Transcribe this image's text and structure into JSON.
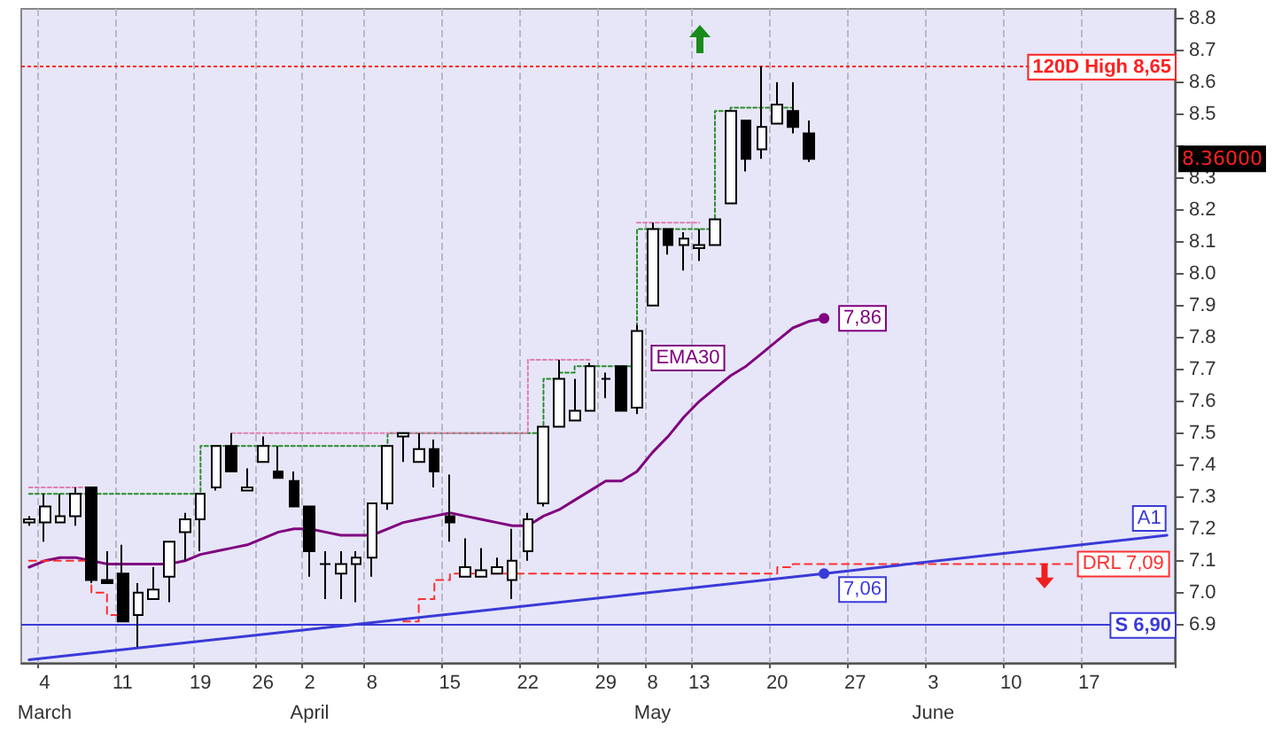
{
  "chart_data": {
    "type": "candlestick",
    "categories": [
      null,
      "4\nMarch",
      null,
      null,
      null,
      null,
      "11",
      null,
      null,
      null,
      null,
      "19",
      null,
      null,
      null,
      "26",
      null,
      null,
      "2\nApril",
      null,
      null,
      null,
      "8",
      null,
      null,
      null,
      null,
      "15",
      null,
      null,
      null,
      null,
      "22",
      null,
      null,
      null,
      null,
      "29",
      null,
      null,
      "8\nMay",
      null,
      null,
      "13",
      null,
      null,
      null,
      null,
      "20",
      null,
      null,
      null,
      null,
      "27",
      null,
      null,
      null,
      null,
      "3\nJune",
      null,
      null,
      null,
      null,
      "10",
      null,
      null,
      null,
      null,
      "17",
      null,
      null,
      null,
      null,
      null
    ],
    "ohlc": [
      [
        7.22,
        7.24,
        7.21,
        7.23
      ],
      [
        7.22,
        7.31,
        7.16,
        7.27
      ],
      [
        7.22,
        7.31,
        7.22,
        7.24
      ],
      [
        7.24,
        7.33,
        7.21,
        7.31
      ],
      [
        7.33,
        7.33,
        7.03,
        7.04
      ],
      [
        7.04,
        7.13,
        7.03,
        7.03
      ],
      [
        7.06,
        7.15,
        6.91,
        6.91
      ],
      [
        6.93,
        7.03,
        6.83,
        7.0
      ],
      [
        6.98,
        7.08,
        6.98,
        7.01
      ],
      [
        7.05,
        7.16,
        6.97,
        7.16
      ],
      [
        7.19,
        7.25,
        7.1,
        7.23
      ],
      [
        7.23,
        7.31,
        7.13,
        7.31
      ],
      [
        7.33,
        7.46,
        7.32,
        7.46
      ],
      [
        7.46,
        7.5,
        7.38,
        7.38
      ],
      [
        7.32,
        7.39,
        7.32,
        7.33
      ],
      [
        7.41,
        7.49,
        7.41,
        7.46
      ],
      [
        7.38,
        7.46,
        7.36,
        7.36
      ],
      [
        7.35,
        7.38,
        7.27,
        7.27
      ],
      [
        7.27,
        7.27,
        7.05,
        7.13
      ],
      [
        7.09,
        7.13,
        6.98,
        7.09
      ],
      [
        7.06,
        7.13,
        6.98,
        7.09
      ],
      [
        7.09,
        7.13,
        6.97,
        7.11
      ],
      [
        7.11,
        7.28,
        7.05,
        7.28
      ],
      [
        7.28,
        7.46,
        7.26,
        7.46
      ],
      [
        7.49,
        7.5,
        7.41,
        7.5
      ],
      [
        7.41,
        7.5,
        7.41,
        7.45
      ],
      [
        7.45,
        7.48,
        7.33,
        7.38
      ],
      [
        7.24,
        7.37,
        7.16,
        7.22
      ],
      [
        7.05,
        7.17,
        7.05,
        7.08
      ],
      [
        7.05,
        7.14,
        7.05,
        7.07
      ],
      [
        7.06,
        7.11,
        7.06,
        7.08
      ],
      [
        7.04,
        7.2,
        6.98,
        7.1
      ],
      [
        7.13,
        7.25,
        7.1,
        7.23
      ],
      [
        7.28,
        7.52,
        7.27,
        7.52
      ],
      [
        7.52,
        7.73,
        7.52,
        7.67
      ],
      [
        7.54,
        7.67,
        7.54,
        7.57
      ],
      [
        7.57,
        7.72,
        7.57,
        7.71
      ],
      [
        7.67,
        7.69,
        7.61,
        7.67
      ],
      [
        7.71,
        7.71,
        7.57,
        7.57
      ],
      [
        7.58,
        7.84,
        7.56,
        7.82
      ],
      [
        7.9,
        8.16,
        7.9,
        8.14
      ],
      [
        8.14,
        8.14,
        8.06,
        8.09
      ],
      [
        8.09,
        8.13,
        8.01,
        8.11
      ],
      [
        8.08,
        8.14,
        8.04,
        8.09
      ],
      [
        8.09,
        8.17,
        8.09,
        8.17
      ],
      [
        8.22,
        8.51,
        8.22,
        8.51
      ],
      [
        8.48,
        8.48,
        8.32,
        8.36
      ],
      [
        8.39,
        8.65,
        8.36,
        8.46
      ],
      [
        8.47,
        8.6,
        8.47,
        8.53
      ],
      [
        8.51,
        8.6,
        8.44,
        8.46
      ],
      [
        8.44,
        8.48,
        8.35,
        8.36
      ],
      null,
      null,
      null,
      null,
      null,
      null,
      null,
      null,
      null,
      null,
      null,
      null,
      null,
      null,
      null,
      null,
      null,
      null,
      null,
      null,
      null,
      null,
      null
    ],
    "series": [
      {
        "type": "line",
        "name": "EMA30",
        "color": "#800080",
        "values": [
          7.08,
          7.1,
          7.11,
          7.11,
          7.1,
          7.09,
          7.09,
          7.09,
          7.09,
          7.09,
          7.1,
          7.12,
          7.13,
          7.14,
          7.15,
          7.17,
          7.19,
          7.2,
          7.2,
          7.19,
          7.18,
          7.18,
          7.18,
          7.2,
          7.22,
          7.23,
          7.24,
          7.25,
          7.24,
          7.23,
          7.22,
          7.21,
          7.21,
          7.24,
          7.26,
          7.29,
          7.32,
          7.35,
          7.35,
          7.38,
          7.44,
          7.49,
          7.55,
          7.6,
          7.64,
          7.68,
          7.71,
          7.75,
          7.79,
          7.83,
          7.85,
          7.86,
          null,
          null,
          null,
          null,
          null,
          null,
          null,
          null,
          null,
          null,
          null,
          null,
          null,
          null,
          null,
          null,
          null,
          null,
          null,
          null,
          null,
          null
        ],
        "value_labels": [
          null,
          null,
          null,
          null,
          null,
          null,
          null,
          null,
          null,
          null,
          null,
          null,
          null,
          null,
          null,
          null,
          null,
          null,
          null,
          null,
          null,
          null,
          null,
          null,
          null,
          null,
          null,
          null,
          null,
          null,
          null,
          null,
          null,
          null,
          null,
          null,
          null,
          null,
          null,
          null,
          null,
          null,
          null,
          null,
          null,
          null,
          null,
          null,
          null,
          null,
          null,
          "7,86",
          null,
          null,
          null,
          null,
          null,
          null,
          null,
          null,
          null,
          null,
          null,
          null,
          null,
          null,
          null,
          null,
          null,
          null,
          null,
          null,
          null,
          null
        ]
      },
      {
        "type": "step",
        "color": "#2e8b2e",
        "line_style": "dotted",
        "values": [
          7.31,
          7.31,
          7.31,
          7.31,
          7.31,
          7.31,
          7.31,
          7.31,
          7.31,
          7.31,
          7.31,
          7.31,
          7.46,
          7.46,
          7.46,
          7.46,
          7.46,
          7.46,
          7.46,
          7.46,
          7.46,
          7.46,
          7.46,
          7.46,
          7.5,
          7.5,
          7.5,
          7.5,
          7.5,
          7.5,
          7.5,
          7.5,
          7.5,
          7.5,
          7.67,
          7.69,
          7.71,
          7.71,
          7.71,
          7.71,
          8.14,
          8.14,
          8.14,
          8.14,
          8.14,
          8.51,
          8.52,
          8.52,
          8.52,
          8.52,
          null,
          null,
          null,
          null,
          null,
          null,
          null,
          null,
          null,
          null,
          null,
          null,
          null,
          null,
          null,
          null,
          null,
          null,
          null,
          null,
          null,
          null,
          null,
          null
        ]
      },
      {
        "type": "step",
        "color": "#e080b0",
        "line_style": "dotted",
        "values": [
          7.33,
          7.33,
          7.33,
          7.33,
          7.33,
          null,
          null,
          null,
          null,
          null,
          null,
          null,
          null,
          null,
          7.5,
          7.5,
          7.5,
          7.5,
          7.5,
          7.5,
          7.5,
          7.5,
          7.5,
          7.5,
          7.5,
          7.5,
          7.5,
          7.5,
          7.5,
          7.5,
          7.5,
          7.5,
          7.5,
          7.73,
          7.73,
          7.73,
          7.73,
          null,
          null,
          null,
          8.16,
          8.16,
          8.16,
          8.16,
          null,
          null,
          null,
          null,
          null,
          null,
          null,
          null,
          null,
          null,
          null,
          null,
          null,
          null,
          null,
          null,
          null,
          null,
          null,
          null,
          null,
          null,
          null,
          null,
          null,
          null,
          null,
          null,
          null,
          null
        ]
      },
      {
        "type": "step",
        "name": "DRL 7,09",
        "color": "#ff3030",
        "line_style": "dashed",
        "values": [
          7.1,
          7.1,
          7.1,
          7.1,
          7.1,
          7.0,
          6.93,
          null,
          null,
          null,
          null,
          null,
          null,
          null,
          null,
          null,
          null,
          null,
          null,
          null,
          null,
          null,
          null,
          null,
          null,
          6.91,
          6.98,
          7.04,
          7.06,
          7.06,
          7.06,
          7.06,
          7.06,
          7.06,
          7.06,
          7.06,
          7.06,
          7.06,
          7.06,
          7.06,
          7.06,
          7.06,
          7.06,
          7.06,
          7.06,
          7.06,
          7.06,
          7.06,
          7.06,
          7.08,
          7.09,
          7.09,
          7.09,
          7.09,
          7.09,
          7.09,
          7.09,
          7.09,
          7.09,
          7.09,
          7.09,
          7.09,
          7.09,
          7.09,
          7.09,
          7.09,
          7.09,
          7.09,
          null,
          null,
          null,
          null,
          null,
          null
        ]
      },
      {
        "type": "line",
        "name": "A1",
        "color": "#3a3ad8",
        "values": [
          6.79,
          null,
          null,
          null,
          null,
          null,
          null,
          null,
          null,
          null,
          null,
          null,
          null,
          null,
          null,
          null,
          null,
          null,
          null,
          null,
          null,
          null,
          null,
          null,
          null,
          null,
          null,
          null,
          null,
          null,
          null,
          null,
          null,
          null,
          null,
          null,
          null,
          null,
          null,
          null,
          null,
          null,
          null,
          null,
          null,
          null,
          null,
          null,
          null,
          null,
          null,
          7.06,
          null,
          null,
          null,
          null,
          null,
          null,
          null,
          null,
          null,
          null,
          null,
          null,
          null,
          null,
          null,
          null,
          null,
          null,
          null,
          null,
          null,
          7.18
        ],
        "value_labels": [
          null,
          null,
          null,
          null,
          null,
          null,
          null,
          null,
          null,
          null,
          null,
          null,
          null,
          null,
          null,
          null,
          null,
          null,
          null,
          null,
          null,
          null,
          null,
          null,
          null,
          null,
          null,
          null,
          null,
          null,
          null,
          null,
          null,
          null,
          null,
          null,
          null,
          null,
          null,
          null,
          null,
          null,
          null,
          null,
          null,
          null,
          null,
          null,
          null,
          null,
          null,
          "7,06",
          null,
          null,
          null,
          null,
          null,
          null,
          null,
          null,
          null,
          null,
          null,
          null,
          null,
          null,
          null,
          null,
          null,
          null,
          null,
          null,
          null,
          null
        ]
      }
    ],
    "ref_lines": [
      {
        "axis": "y",
        "value": 8.65,
        "label": "120D High 8,65",
        "color": "#ff2020",
        "line_style": "dotted"
      },
      {
        "axis": "y",
        "value": 6.9,
        "label": "S 6,90",
        "color": "#3a3ad8",
        "line_style": "solid"
      }
    ],
    "annotations": [
      "8.36000"
    ],
    "ylim": [
      6.78,
      8.83
    ],
    "yticks": [
      6.9,
      {
        "value": 7,
        "label": "7.0"
      },
      7.1,
      7.2,
      7.3,
      7.4,
      7.5,
      7.6,
      7.7,
      7.8,
      7.9,
      {
        "value": 8,
        "label": "8.0"
      },
      8.1,
      8.2,
      8.3,
      {
        "value": 8.4,
        "label": null
      },
      8.5,
      8.6,
      8.7,
      8.8
    ],
    "grid": "x",
    "legend": false
  }
}
